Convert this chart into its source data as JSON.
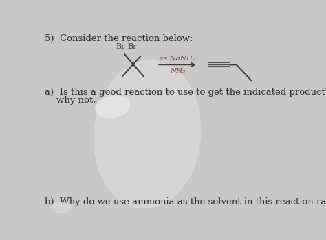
{
  "background_color": "#c8c8c8",
  "title_text": "5)  Consider the reaction below:",
  "title_fontsize": 9.5,
  "question_a_text_line1": "a)  Is this a good reaction to use to get the indicated product? Explain why or",
  "question_a_text_line2": "    why not.",
  "question_a_fontsize": 9.5,
  "question_b_text": "b)  Why do we use ammonia as the solvent in this reaction rather than water?",
  "question_b_fontsize": 9.5,
  "reagent_text": "xs NaNH₂",
  "solvent_text": "NH₃",
  "text_color": "#2a2a2a",
  "red_text_color": "#8b3a3a",
  "struct_color": "#3a3a3a"
}
